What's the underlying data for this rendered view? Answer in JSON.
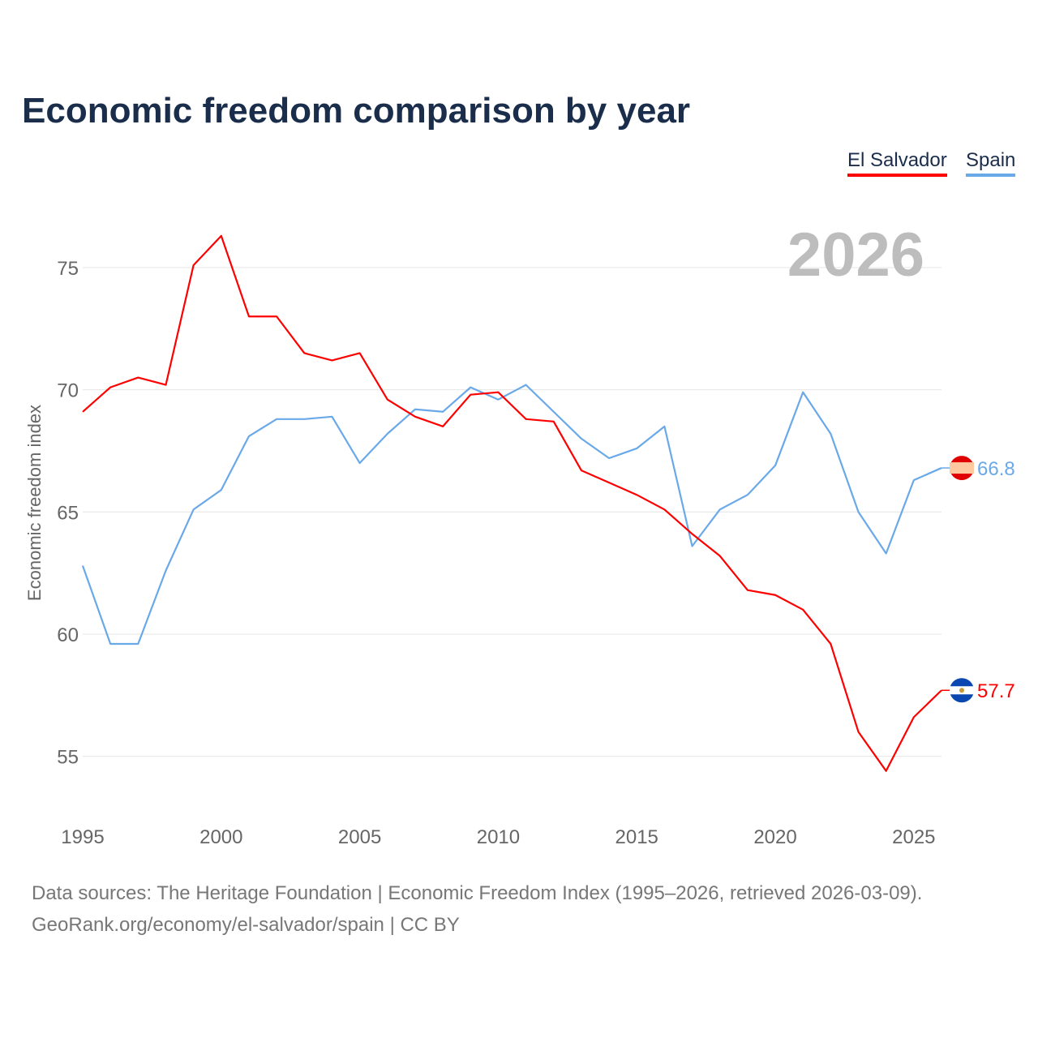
{
  "chart_data": {
    "type": "line",
    "title": "Economic freedom comparison by year",
    "xlabel": "",
    "ylabel": "Economic freedom index",
    "xlim": [
      1995,
      2026
    ],
    "ylim": [
      52.5,
      77.5
    ],
    "x_ticks": [
      "1995",
      "2000",
      "2005",
      "2010",
      "2015",
      "2020",
      "2025"
    ],
    "y_ticks": [
      "55",
      "60",
      "65",
      "70",
      "75"
    ],
    "year_watermark": "2026",
    "grid": true,
    "legend_position": "top-right",
    "x": [
      1995,
      1996,
      1997,
      1998,
      1999,
      2000,
      2001,
      2002,
      2003,
      2004,
      2005,
      2006,
      2007,
      2008,
      2009,
      2010,
      2011,
      2012,
      2013,
      2014,
      2015,
      2016,
      2017,
      2018,
      2019,
      2020,
      2021,
      2022,
      2023,
      2024,
      2025,
      2026
    ],
    "series": [
      {
        "name": "El Salvador",
        "color": "#ff0000",
        "end_label": "57.7",
        "values": [
          69.1,
          70.1,
          70.5,
          70.2,
          75.1,
          76.3,
          73.0,
          73.0,
          71.5,
          71.2,
          71.5,
          69.6,
          68.9,
          68.5,
          69.8,
          69.9,
          68.8,
          68.7,
          66.7,
          66.2,
          65.7,
          65.1,
          64.1,
          63.2,
          61.8,
          61.6,
          61.0,
          59.6,
          56.0,
          54.4,
          56.6,
          57.7
        ]
      },
      {
        "name": "Spain",
        "color": "#6aa9e9",
        "end_label": "66.8",
        "values": [
          62.8,
          59.6,
          59.6,
          62.6,
          65.1,
          65.9,
          68.1,
          68.8,
          68.8,
          68.9,
          67.0,
          68.2,
          69.2,
          69.1,
          70.1,
          69.6,
          70.2,
          69.1,
          68.0,
          67.2,
          67.6,
          68.5,
          63.6,
          65.1,
          65.7,
          66.9,
          69.9,
          68.2,
          65.0,
          63.3,
          66.3,
          66.8
        ]
      }
    ]
  },
  "footer": {
    "line1": "Data sources: The Heritage Foundation | Economic Freedom Index (1995–2026, retrieved 2026-03-09).",
    "line2": "GeoRank.org/economy/el-salvador/spain | CC BY"
  }
}
